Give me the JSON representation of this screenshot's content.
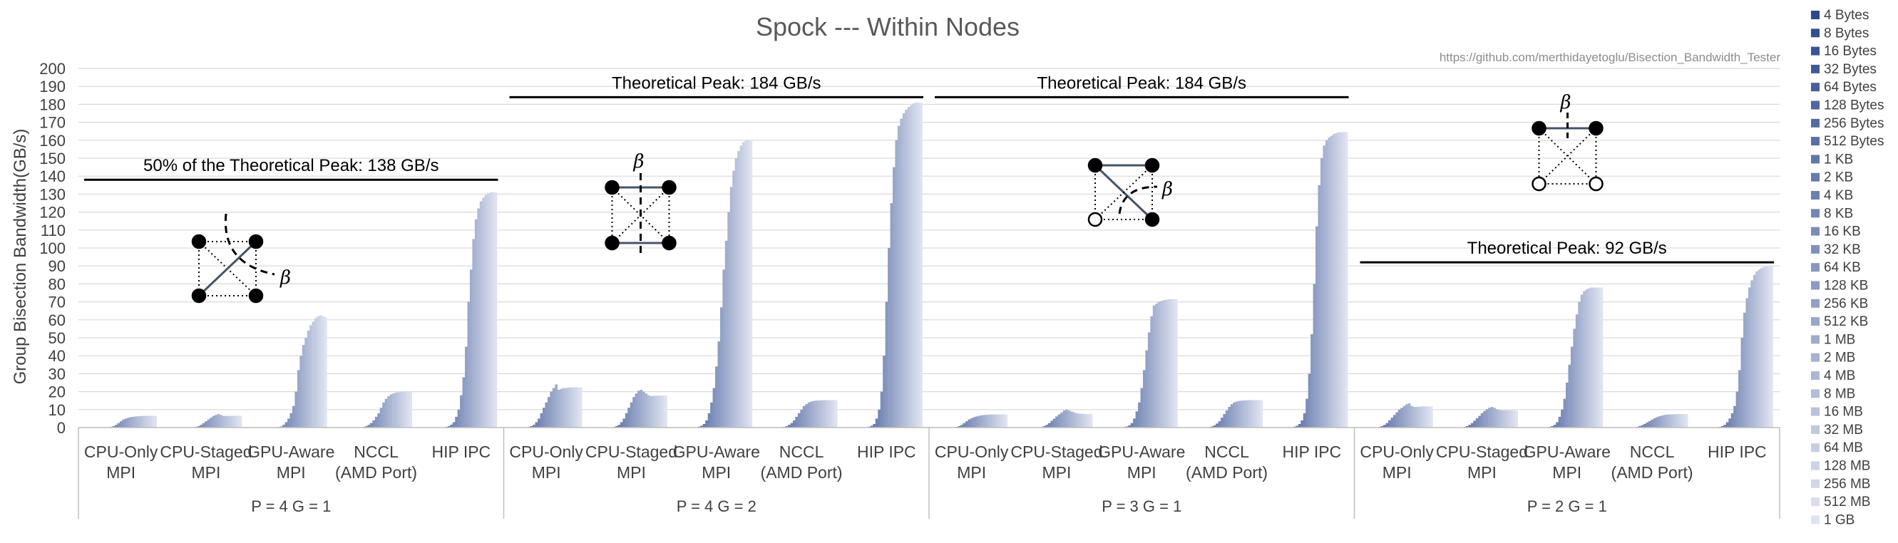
{
  "chart_data": {
    "type": "bar",
    "title": "Spock --- Within Nodes",
    "source_url": "https://github.com/merthidayetoglu/Bisection_Bandwidth_Tester",
    "ylabel": "Group Bisection Bandwidth(GB/s)",
    "ylim": [
      0,
      200
    ],
    "ytick_step": 10,
    "grid": true,
    "legend_position": "right",
    "series_names": [
      "4 Bytes",
      "8 Bytes",
      "16 Bytes",
      "32 Bytes",
      "64 Bytes",
      "128 Bytes",
      "256 Bytes",
      "512 Bytes",
      "1 KB",
      "2 KB",
      "4 KB",
      "8 KB",
      "16 KB",
      "32 KB",
      "64 KB",
      "128 KB",
      "256 KB",
      "512 KB",
      "1 MB",
      "2 MB",
      "4 MB",
      "8 MB",
      "16 MB",
      "32 MB",
      "64 MB",
      "128 MB",
      "256 MB",
      "512 MB",
      "1 GB"
    ],
    "color_dark": "#2e4a8c",
    "color_light": "#dfe3f1",
    "groups": [
      {
        "label": "P = 4  G = 1",
        "peak_label": "50% of the Theoretical Peak: 138 GB/s",
        "peak_value": 138,
        "diagram": "A",
        "categories": [
          {
            "name": [
              "CPU-Only",
              "MPI"
            ],
            "values": [
              0,
              0,
              0,
              0,
              0,
              0,
              0,
              0.1,
              0.1,
              0.2,
              0.4,
              0.8,
              1.5,
              2.5,
              3.5,
              4.5,
              5,
              5.5,
              5.8,
              6,
              6.2,
              6.3,
              6.4,
              6.5,
              6.5,
              6.6,
              6.6,
              6.6,
              6.6
            ]
          },
          {
            "name": [
              "CPU-Staged",
              "MPI"
            ],
            "values": [
              0,
              0,
              0,
              0,
              0,
              0,
              0,
              0.1,
              0.1,
              0.2,
              0.4,
              0.8,
              1.5,
              2.5,
              3.5,
              4.5,
              5.5,
              6.5,
              7,
              7.5,
              7,
              6.5,
              6.5,
              6.5,
              6.5,
              6.6,
              6.6,
              6.6,
              6.6
            ]
          },
          {
            "name": [
              "GPU-Aware",
              "MPI"
            ],
            "values": [
              0,
              0,
              0,
              0,
              0,
              0,
              0,
              0.1,
              0.2,
              0.3,
              0.6,
              1.5,
              3,
              5,
              8,
              12,
              20,
              32,
              40,
              46,
              50,
              54,
              57,
              59,
              61,
              62,
              62.5,
              62,
              61.5
            ]
          },
          {
            "name": [
              "NCCL",
              "(AMD Port)"
            ],
            "values": [
              0,
              0,
              0,
              0,
              0,
              0,
              0,
              0.1,
              0.2,
              0.4,
              0.8,
              1.5,
              2.5,
              4,
              6,
              8,
              11,
              14,
              16,
              17.5,
              18.5,
              19,
              19.5,
              19.6,
              19.7,
              19.8,
              19.8,
              19.8,
              19.8
            ]
          },
          {
            "name": [
              "HIP IPC",
              ""
            ],
            "values": [
              0,
              0,
              0,
              0,
              0,
              0,
              0,
              0.2,
              0.4,
              0.8,
              1.6,
              3,
              6,
              10,
              18,
              28,
              45,
              70,
              88,
              105,
              116,
              122,
              126,
              128,
              129.5,
              130.5,
              131,
              131,
              131
            ]
          }
        ]
      },
      {
        "label": "P = 4  G = 2",
        "peak_label": "Theoretical Peak: 184 GB/s",
        "peak_value": 184,
        "diagram": "B",
        "categories": [
          {
            "name": [
              "CPU-Only",
              "MPI"
            ],
            "values": [
              0,
              0,
              0,
              0,
              0,
              0,
              0.2,
              0.4,
              0.8,
              1.5,
              3,
              5,
              8,
              11,
              14,
              17,
              20,
              22,
              24,
              21,
              21.5,
              22,
              22,
              22.2,
              22.3,
              22.4,
              22.4,
              22.4,
              22.4
            ]
          },
          {
            "name": [
              "CPU-Staged",
              "MPI"
            ],
            "values": [
              0,
              0,
              0,
              0,
              0,
              0,
              0.2,
              0.4,
              0.8,
              1.5,
              3,
              5,
              8,
              11,
              14,
              17,
              19,
              20.5,
              21,
              20,
              19,
              18,
              17.5,
              17.6,
              17.7,
              17.8,
              17.8,
              17.8,
              17.8
            ]
          },
          {
            "name": [
              "GPU-Aware",
              "MPI"
            ],
            "values": [
              0,
              0,
              0,
              0,
              0,
              0,
              0.2,
              0.5,
              1,
              2,
              4,
              8,
              14,
              22,
              34,
              48,
              67,
              88,
              104,
              120,
              134,
              143,
              150,
              154,
              157,
              159,
              160,
              160,
              160
            ]
          },
          {
            "name": [
              "NCCL",
              "(AMD Port)"
            ],
            "values": [
              0,
              0,
              0,
              0,
              0,
              0,
              0.2,
              0.4,
              0.8,
              1.5,
              2.5,
              4,
              6,
              8,
              10,
              12,
              13,
              14,
              14.5,
              14.8,
              15,
              15.1,
              15.2,
              15.3,
              15.3,
              15.3,
              15.3,
              15.3,
              15.3
            ]
          },
          {
            "name": [
              "HIP IPC",
              ""
            ],
            "values": [
              0,
              0,
              0,
              0,
              0,
              0,
              0.2,
              0.5,
              1,
              2,
              5,
              10,
              20,
              40,
              70,
              100,
              125,
              145,
              160,
              168,
              172,
              175,
              177,
              178.5,
              179.5,
              180.5,
              181,
              181,
              181
            ]
          }
        ]
      },
      {
        "label": "P = 3  G = 1",
        "peak_label": "Theoretical Peak: 184 GB/s",
        "peak_value": 184,
        "diagram": "C",
        "categories": [
          {
            "name": [
              "CPU-Only",
              "MPI"
            ],
            "values": [
              0,
              0,
              0,
              0,
              0,
              0,
              0,
              0.2,
              0.4,
              0.8,
              1.5,
              2.5,
              3.5,
              4.5,
              5.2,
              5.8,
              6.2,
              6.5,
              6.8,
              7,
              7.1,
              7.2,
              7.3,
              7.3,
              7.3,
              7.3,
              7.3,
              7.3,
              7.3
            ]
          },
          {
            "name": [
              "CPU-Staged",
              "MPI"
            ],
            "values": [
              0,
              0,
              0,
              0,
              0,
              0,
              0,
              0.2,
              0.4,
              0.8,
              1.5,
              2.5,
              3.8,
              5,
              6.2,
              7.3,
              8.3,
              9.5,
              10,
              9.5,
              9,
              8.5,
              8,
              7.8,
              7.7,
              7.6,
              7.5,
              7.5,
              7.5
            ]
          },
          {
            "name": [
              "GPU-Aware",
              "MPI"
            ],
            "values": [
              0,
              0,
              0,
              0,
              0,
              0,
              0.1,
              0.3,
              0.6,
              1.2,
              2.5,
              5,
              9,
              14,
              22,
              32,
              43,
              53,
              62,
              68,
              69,
              70,
              70.5,
              71,
              71.2,
              71.5,
              71.5,
              71.5,
              71.5
            ]
          },
          {
            "name": [
              "NCCL",
              "(AMD Port)"
            ],
            "values": [
              0,
              0,
              0,
              0,
              0,
              0,
              0.1,
              0.3,
              0.6,
              1.2,
              2.2,
              3.5,
              5.5,
              7.5,
              9.5,
              11.5,
              13,
              14,
              14.5,
              14.8,
              15,
              15.1,
              15.2,
              15.3,
              15.3,
              15.3,
              15.3,
              15.3,
              15.3
            ]
          },
          {
            "name": [
              "HIP IPC",
              ""
            ],
            "values": [
              0,
              0,
              0,
              0,
              0,
              0,
              0.2,
              0.5,
              1,
              2,
              4,
              8,
              16,
              30,
              52,
              80,
              112,
              135,
              150,
              157,
              160,
              161.5,
              162.5,
              163.5,
              164,
              164.5,
              164.5,
              164.5,
              164.5
            ]
          }
        ]
      },
      {
        "label": "P = 2  G = 1",
        "peak_label": "Theoretical Peak: 92 GB/s",
        "peak_value": 92,
        "diagram": "D",
        "categories": [
          {
            "name": [
              "CPU-Only",
              "MPI"
            ],
            "values": [
              0,
              0,
              0,
              0,
              0,
              0,
              0.2,
              0.4,
              0.8,
              1.5,
              2.5,
              4,
              5.5,
              7,
              8.5,
              10,
              11,
              12,
              13,
              13.5,
              12,
              11.5,
              11.5,
              11.6,
              11.7,
              11.8,
              11.8,
              11.8,
              11.8
            ]
          },
          {
            "name": [
              "CPU-Staged",
              "MPI"
            ],
            "values": [
              0,
              0,
              0,
              0,
              0,
              0,
              0.2,
              0.4,
              0.8,
              1.5,
              2.5,
              3.8,
              5.2,
              6.5,
              8,
              9.2,
              10.2,
              11,
              11.5,
              11,
              10.2,
              9.8,
              9.6,
              9.6,
              9.6,
              9.6,
              9.6,
              9.6,
              9.6
            ]
          },
          {
            "name": [
              "GPU-Aware",
              "MPI"
            ],
            "values": [
              0,
              0,
              0,
              0,
              0,
              0,
              0.2,
              0.4,
              0.8,
              1.5,
              3,
              6,
              10,
              16,
              25,
              35,
              45,
              55,
              63,
              70,
              74,
              76,
              77,
              77.5,
              78,
              78,
              78,
              78,
              78
            ]
          },
          {
            "name": [
              "NCCL",
              "(AMD Port)"
            ],
            "values": [
              0,
              0,
              0,
              0,
              0,
              0,
              0.1,
              0.2,
              0.4,
              0.8,
              1.3,
              2,
              2.8,
              3.6,
              4.4,
              5.2,
              5.8,
              6.3,
              6.7,
              7,
              7.2,
              7.3,
              7.4,
              7.4,
              7.5,
              7.5,
              7.5,
              7.5,
              7.5
            ]
          },
          {
            "name": [
              "HIP IPC",
              ""
            ],
            "values": [
              0,
              0,
              0,
              0,
              0,
              0,
              0.2,
              0.4,
              0.8,
              1.5,
              3,
              5,
              8,
              12,
              20,
              32,
              50,
              64,
              72,
              78,
              82,
              85,
              87,
              88,
              89,
              89.5,
              89.8,
              89.8,
              89.8
            ]
          }
        ]
      }
    ]
  }
}
